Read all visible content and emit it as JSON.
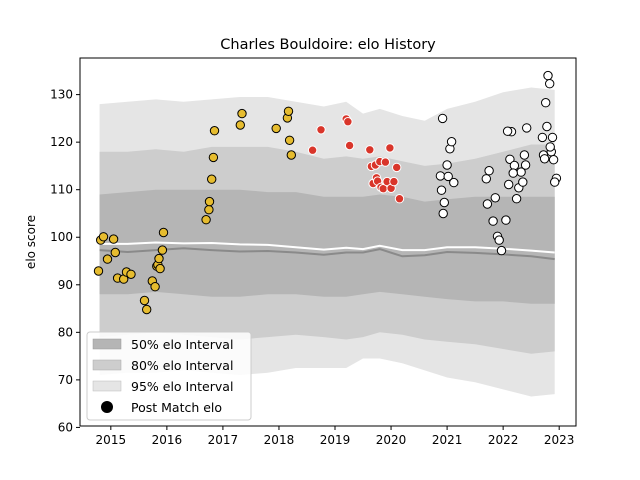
{
  "chart_data": {
    "type": "scatter",
    "title": "Charles Bouldoire: elo History",
    "xlabel": "",
    "ylabel": "elo score",
    "xlim": [
      2014.45,
      2023.3
    ],
    "ylim": [
      60.3,
      137.7
    ],
    "x_ticks": [
      2015,
      2016,
      2017,
      2018,
      2019,
      2020,
      2021,
      2022,
      2023
    ],
    "y_ticks": [
      60,
      70,
      80,
      90,
      100,
      110,
      120,
      130
    ],
    "grid": false,
    "legend": {
      "placement": "lower-left",
      "entries": [
        "50% elo Interval",
        "80% elo Interval",
        "95% elo Interval",
        "Post Match elo"
      ]
    },
    "colors": {
      "band95": "#e5e5e5",
      "band80": "#cdcdcd",
      "band50": "#b5b5b5",
      "mean_line": "#ffffff",
      "median_line": "#8a8a8a",
      "yellow_points": "#e6bc2f",
      "red_points": "#d9352a",
      "white_points": "#ffffff",
      "point_edge": "#000000"
    },
    "bands": {
      "x": [
        2014.8,
        2015.3,
        2015.8,
        2016.3,
        2016.8,
        2017.3,
        2017.8,
        2018.3,
        2018.8,
        2019.2,
        2019.5,
        2019.8,
        2020.2,
        2020.6,
        2021.0,
        2021.5,
        2022.0,
        2022.5,
        2022.92
      ],
      "p95_upper": [
        128,
        128.5,
        129,
        128.5,
        129,
        129.5,
        129.5,
        128.5,
        127.5,
        128.5,
        126,
        127,
        125.5,
        124.5,
        127,
        128.5,
        130.5,
        131.5,
        131
      ],
      "p95_lower": [
        71,
        71.5,
        71.5,
        72,
        71.5,
        71,
        71.5,
        72.5,
        72.5,
        72.5,
        74.5,
        74.5,
        73.5,
        72,
        70.5,
        69.5,
        68,
        66.5,
        67
      ],
      "p80_upper": [
        118,
        118,
        118.5,
        118,
        119,
        119,
        119,
        118,
        116.5,
        117,
        116.5,
        117,
        116,
        115,
        115.5,
        116.5,
        118,
        119.5,
        119.5
      ],
      "p80_lower": [
        79,
        79.5,
        80,
        79.5,
        79,
        78.5,
        79,
        79.5,
        79,
        78.5,
        79,
        80,
        79.5,
        78.5,
        78,
        77.5,
        76.5,
        75.5,
        76
      ],
      "p50_upper": [
        109,
        109.5,
        110,
        110,
        110,
        110,
        109.5,
        109.5,
        108.5,
        108.5,
        108.5,
        109,
        108.5,
        107.5,
        108,
        108.5,
        108.5,
        108.5,
        108.5
      ],
      "p50_lower": [
        88,
        88,
        88.5,
        88,
        87.5,
        87.5,
        88,
        88,
        87.5,
        87.5,
        88,
        88.5,
        88,
        87.5,
        87,
        86.5,
        86.5,
        86,
        86
      ],
      "mean": [
        98.6,
        98.6,
        98.9,
        98.7,
        98.8,
        98.5,
        98.4,
        97.9,
        97.4,
        97.8,
        97.5,
        98.2,
        97.3,
        97.3,
        97.9,
        97.9,
        97.6,
        97.2,
        96.8
      ],
      "median": [
        97.3,
        96.9,
        97.3,
        97.7,
        97.3,
        97.0,
        97.1,
        96.8,
        96.3,
        96.8,
        96.8,
        97.5,
        96.0,
        96.2,
        96.9,
        96.7,
        96.4,
        96.0,
        95.4
      ]
    },
    "series": [
      {
        "color_key": "yellow_points",
        "x": [
          2014.78,
          2014.82,
          2014.87,
          2014.94,
          2015.05,
          2015.08,
          2015.12,
          2015.23,
          2015.28,
          2015.36,
          2015.6,
          2015.64,
          2015.74,
          2015.79,
          2015.82,
          2015.84,
          2015.86,
          2015.88,
          2015.92,
          2015.94,
          2016.7,
          2016.75,
          2016.76,
          2016.8,
          2016.83,
          2016.85,
          2017.31,
          2017.34,
          2017.95,
          2018.15,
          2018.17,
          2018.19,
          2018.22
        ],
        "y": [
          92.9,
          99.4,
          100.1,
          95.4,
          99.6,
          96.8,
          91.4,
          91.2,
          92.7,
          92.2,
          86.7,
          84.8,
          90.8,
          89.6,
          93.9,
          94.2,
          95.5,
          93.4,
          97.3,
          101.0,
          103.7,
          105.8,
          107.5,
          112.2,
          116.8,
          122.4,
          123.6,
          126.0,
          122.9,
          125.1,
          126.5,
          120.4,
          117.3
        ]
      },
      {
        "color_key": "red_points",
        "x": [
          2018.6,
          2018.75,
          2019.2,
          2019.23,
          2019.26,
          2019.62,
          2019.65,
          2019.68,
          2019.72,
          2019.74,
          2019.76,
          2019.8,
          2019.82,
          2019.86,
          2019.9,
          2019.93,
          2019.98,
          2020.0,
          2020.05,
          2020.1,
          2020.15
        ],
        "y": [
          118.3,
          122.6,
          124.9,
          124.3,
          119.3,
          118.4,
          114.9,
          111.3,
          115.2,
          112.5,
          111.8,
          115.9,
          110.5,
          110.2,
          115.8,
          111.7,
          118.8,
          110.3,
          111.7,
          114.7,
          108.1
        ]
      },
      {
        "color_key": "white_points",
        "x": [
          2020.88,
          2020.9,
          2020.93,
          2021.0,
          2021.05,
          2021.08,
          2021.12,
          2020.92,
          2020.95,
          2021.02,
          2021.7,
          2021.72,
          2021.75,
          2021.82,
          2021.86,
          2021.9,
          2021.93,
          2021.97,
          2022.05,
          2022.1,
          2022.12,
          2022.15,
          2022.2,
          2022.24,
          2022.28,
          2022.32,
          2022.35,
          2022.4,
          2022.7,
          2022.72,
          2022.74,
          2022.76,
          2022.8,
          2022.83,
          2022.86,
          2022.9,
          2022.95
        ],
        "y": [
          112.9,
          109.9,
          105.0,
          115.2,
          118.6,
          120.1,
          111.5,
          125.0,
          107.3,
          112.8,
          112.3,
          107.0,
          114.0,
          103.4,
          108.3,
          100.2,
          99.4,
          97.2,
          103.6,
          111.1,
          116.4,
          122.2,
          115.1,
          108.1,
          110.4,
          113.7,
          111.6,
          115.2,
          121.0,
          117.3,
          116.5,
          128.3,
          134.0,
          132.3,
          118.0,
          116.3,
          112.4
        ]
      }
    ]
  },
  "extra_white_points": {
    "x": [
      2022.08,
      2022.18,
      2022.38,
      2022.42,
      2022.78,
      2022.84,
      2022.88,
      2022.92
    ],
    "y": [
      122.3,
      113.5,
      117.3,
      123.0,
      123.3,
      119.0,
      121.0,
      111.6
    ]
  }
}
